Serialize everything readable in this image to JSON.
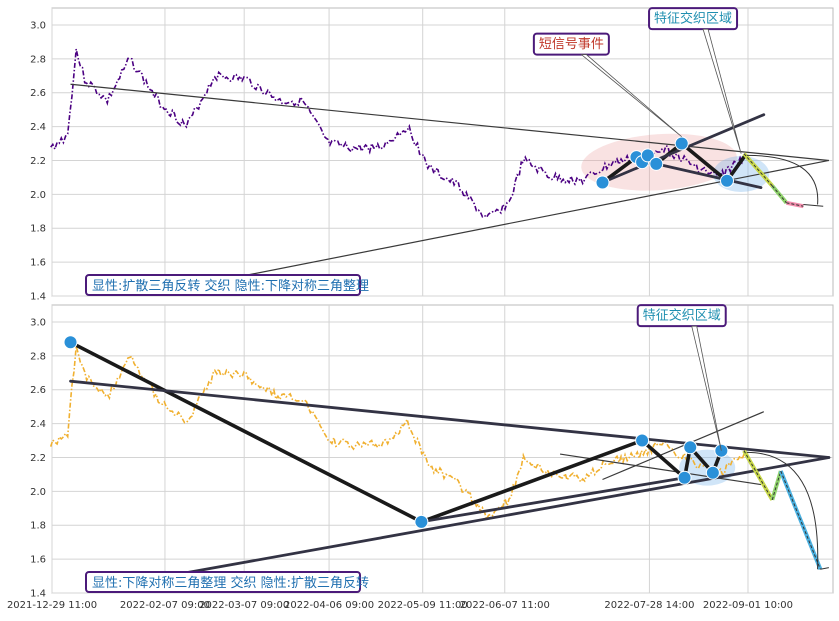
{
  "chart_data": [
    {
      "type": "line",
      "panel": "top",
      "xlim": [
        "2021-12-29 11:00",
        "2022-10-01 11:00"
      ],
      "ylim": [
        1.4,
        3.1
      ],
      "yticks": [
        "1.4",
        "1.6",
        "1.8",
        "2.0",
        "2.2",
        "2.4",
        "2.6",
        "2.8",
        "3.0"
      ],
      "grid": true,
      "line_color": "#4b0082",
      "series_anchor_points": [
        [
          "2021-12-29",
          2.27
        ],
        [
          "2022-01-04",
          2.35
        ],
        [
          "2022-01-07",
          2.85
        ],
        [
          "2022-01-10",
          2.68
        ],
        [
          "2022-01-18",
          2.55
        ],
        [
          "2022-01-26",
          2.8
        ],
        [
          "2022-02-05",
          2.55
        ],
        [
          "2022-02-15",
          2.4
        ],
        [
          "2022-02-25",
          2.7
        ],
        [
          "2022-03-08",
          2.68
        ],
        [
          "2022-03-20",
          2.55
        ],
        [
          "2022-03-28",
          2.55
        ],
        [
          "2022-04-06",
          2.3
        ],
        [
          "2022-04-15",
          2.27
        ],
        [
          "2022-04-25",
          2.28
        ],
        [
          "2022-05-04",
          2.4
        ],
        [
          "2022-05-12",
          2.15
        ],
        [
          "2022-05-22",
          2.05
        ],
        [
          "2022-06-01",
          1.85
        ],
        [
          "2022-06-09",
          1.95
        ],
        [
          "2022-06-14",
          2.2
        ],
        [
          "2022-06-24",
          2.1
        ],
        [
          "2022-07-05",
          2.08
        ],
        [
          "2022-07-15",
          2.18
        ],
        [
          "2022-07-25",
          2.22
        ],
        [
          "2022-08-02",
          2.28
        ],
        [
          "2022-08-12",
          2.18
        ],
        [
          "2022-08-22",
          2.1
        ],
        [
          "2022-08-31",
          2.22
        ]
      ],
      "overlay_series": [
        {
          "color": "#c8d84a",
          "points": [
            [
              "2022-08-31",
              2.24
            ],
            [
              "2022-09-10",
              2.05
            ]
          ]
        },
        {
          "color": "#8fd36b",
          "points": [
            [
              "2022-09-10",
              2.05
            ],
            [
              "2022-09-15",
              1.95
            ]
          ]
        },
        {
          "color": "#f28dac",
          "points": [
            [
              "2022-09-15",
              1.95
            ],
            [
              "2022-09-21",
              1.93
            ]
          ]
        }
      ],
      "pivot_points": [
        [
          "2022-07-12",
          2.07
        ],
        [
          "2022-07-24",
          2.22
        ],
        [
          "2022-07-26",
          2.19
        ],
        [
          "2022-07-28",
          2.23
        ],
        [
          "2022-07-31",
          2.18
        ],
        [
          "2022-08-09",
          2.3
        ],
        [
          "2022-08-25",
          2.08
        ]
      ],
      "bold_paths": [
        [
          [
            "2022-07-12",
            2.07
          ],
          [
            "2022-07-24",
            2.22
          ],
          [
            "2022-07-26",
            2.19
          ],
          [
            "2022-07-28",
            2.23
          ],
          [
            "2022-07-31",
            2.18
          ],
          [
            "2022-08-09",
            2.3
          ],
          [
            "2022-08-25",
            2.08
          ],
          [
            "2022-08-31",
            2.22
          ]
        ],
        [
          [
            "2022-07-12",
            2.07
          ],
          [
            "2022-09-07",
            2.47
          ]
        ],
        [
          [
            "2022-07-31",
            2.18
          ],
          [
            "2022-09-06",
            2.04
          ]
        ]
      ],
      "trend_lines": [
        [
          [
            "2022-01-05",
            2.65
          ],
          [
            "2022-09-30",
            2.2
          ]
        ],
        [
          [
            "2022-02-05",
            1.42
          ],
          [
            "2022-09-30",
            2.2
          ]
        ]
      ],
      "arc": [
        [
          "2022-09-01",
          2.23
        ],
        [
          "2022-09-26",
          1.94
        ]
      ],
      "arrow_end": [
        [
          "2022-09-21",
          1.94
        ],
        [
          "2022-09-28",
          1.93
        ]
      ],
      "annotations": [
        {
          "text": "短信号事件",
          "at": [
            "2022-07-01",
            2.89
          ],
          "color": "#c0392b"
        },
        {
          "text": "特征交织区域",
          "at": [
            "2022-08-13",
            3.04
          ],
          "color": "#1f8fb0"
        }
      ],
      "caption": "显性:扩散三角反转 交织 隐性:下降对称三角整理"
    },
    {
      "type": "line",
      "panel": "bottom",
      "xlim": [
        "2021-12-29 11:00",
        "2022-10-01 11:00"
      ],
      "ylim": [
        1.4,
        3.1
      ],
      "yticks": [
        "1.4",
        "1.6",
        "1.8",
        "2.0",
        "2.2",
        "2.4",
        "2.6",
        "2.8",
        "3.0"
      ],
      "xticks": [
        "2021-12-29 11:00",
        "2022-02-07 09:00",
        "2022-03-07 09:00",
        "2022-04-06 09:00",
        "2022-05-09 11:00",
        "2022-06-07 11:00",
        "2022-07-28 14:00",
        "2022-09-01 10:00"
      ],
      "grid": true,
      "line_color": "#f0b030",
      "series_anchor_points": [
        [
          "2021-12-29",
          2.27
        ],
        [
          "2022-01-04",
          2.35
        ],
        [
          "2022-01-07",
          2.85
        ],
        [
          "2022-01-10",
          2.68
        ],
        [
          "2022-01-18",
          2.55
        ],
        [
          "2022-01-26",
          2.8
        ],
        [
          "2022-02-05",
          2.55
        ],
        [
          "2022-02-15",
          2.4
        ],
        [
          "2022-02-25",
          2.7
        ],
        [
          "2022-03-08",
          2.68
        ],
        [
          "2022-03-20",
          2.55
        ],
        [
          "2022-03-28",
          2.55
        ],
        [
          "2022-04-06",
          2.3
        ],
        [
          "2022-04-15",
          2.27
        ],
        [
          "2022-04-25",
          2.28
        ],
        [
          "2022-05-04",
          2.4
        ],
        [
          "2022-05-12",
          2.15
        ],
        [
          "2022-05-22",
          2.05
        ],
        [
          "2022-06-01",
          1.85
        ],
        [
          "2022-06-09",
          1.95
        ],
        [
          "2022-06-14",
          2.2
        ],
        [
          "2022-06-24",
          2.1
        ],
        [
          "2022-07-05",
          2.08
        ],
        [
          "2022-07-15",
          2.18
        ],
        [
          "2022-07-25",
          2.22
        ],
        [
          "2022-08-02",
          2.28
        ],
        [
          "2022-08-12",
          2.18
        ],
        [
          "2022-08-22",
          2.1
        ],
        [
          "2022-08-31",
          2.22
        ]
      ],
      "overlay_series": [
        {
          "color": "#c8d84a",
          "points": [
            [
              "2022-08-31",
              2.24
            ],
            [
              "2022-09-10",
              1.95
            ]
          ]
        },
        {
          "color": "#8fd36b",
          "points": [
            [
              "2022-09-10",
              1.95
            ],
            [
              "2022-09-13",
              2.12
            ]
          ]
        },
        {
          "color": "#4ab0e0",
          "points": [
            [
              "2022-09-13",
              2.12
            ],
            [
              "2022-09-27",
              1.54
            ]
          ]
        }
      ],
      "pivot_points": [
        [
          "2022-01-05",
          2.88
        ],
        [
          "2022-05-09",
          1.82
        ],
        [
          "2022-07-26",
          2.3
        ],
        [
          "2022-08-10",
          2.08
        ],
        [
          "2022-08-12",
          2.26
        ],
        [
          "2022-08-20",
          2.11
        ],
        [
          "2022-08-23",
          2.24
        ]
      ],
      "bold_paths": [
        [
          [
            "2022-01-05",
            2.88
          ],
          [
            "2022-05-09",
            1.82
          ],
          [
            "2022-07-26",
            2.3
          ],
          [
            "2022-08-10",
            2.08
          ],
          [
            "2022-08-12",
            2.26
          ],
          [
            "2022-08-20",
            2.11
          ],
          [
            "2022-08-23",
            2.24
          ]
        ],
        [
          [
            "2022-05-09",
            1.82
          ],
          [
            "2022-08-10",
            2.08
          ]
        ],
        [
          [
            "2022-01-05",
            2.65
          ],
          [
            "2022-09-30",
            2.2
          ]
        ],
        [
          [
            "2022-02-05",
            1.49
          ],
          [
            "2022-09-30",
            2.2
          ]
        ]
      ],
      "trend_lines": [
        [
          [
            "2022-07-12",
            2.07
          ],
          [
            "2022-09-07",
            2.47
          ]
        ],
        [
          [
            "2022-06-27",
            2.22
          ],
          [
            "2022-09-06",
            2.04
          ]
        ]
      ],
      "arc": [
        [
          "2022-09-01",
          2.23
        ],
        [
          "2022-09-26",
          1.54
        ]
      ],
      "arrow_end": [
        [
          "2022-09-27",
          1.54
        ],
        [
          "2022-09-30",
          1.55
        ]
      ],
      "annotations": [
        {
          "text": "特征交织区域",
          "at": [
            "2022-08-09",
            3.04
          ],
          "color": "#1f8fb0"
        }
      ],
      "caption": "显性:下降对称三角整理 交织 隐性:扩散三角反转"
    }
  ]
}
